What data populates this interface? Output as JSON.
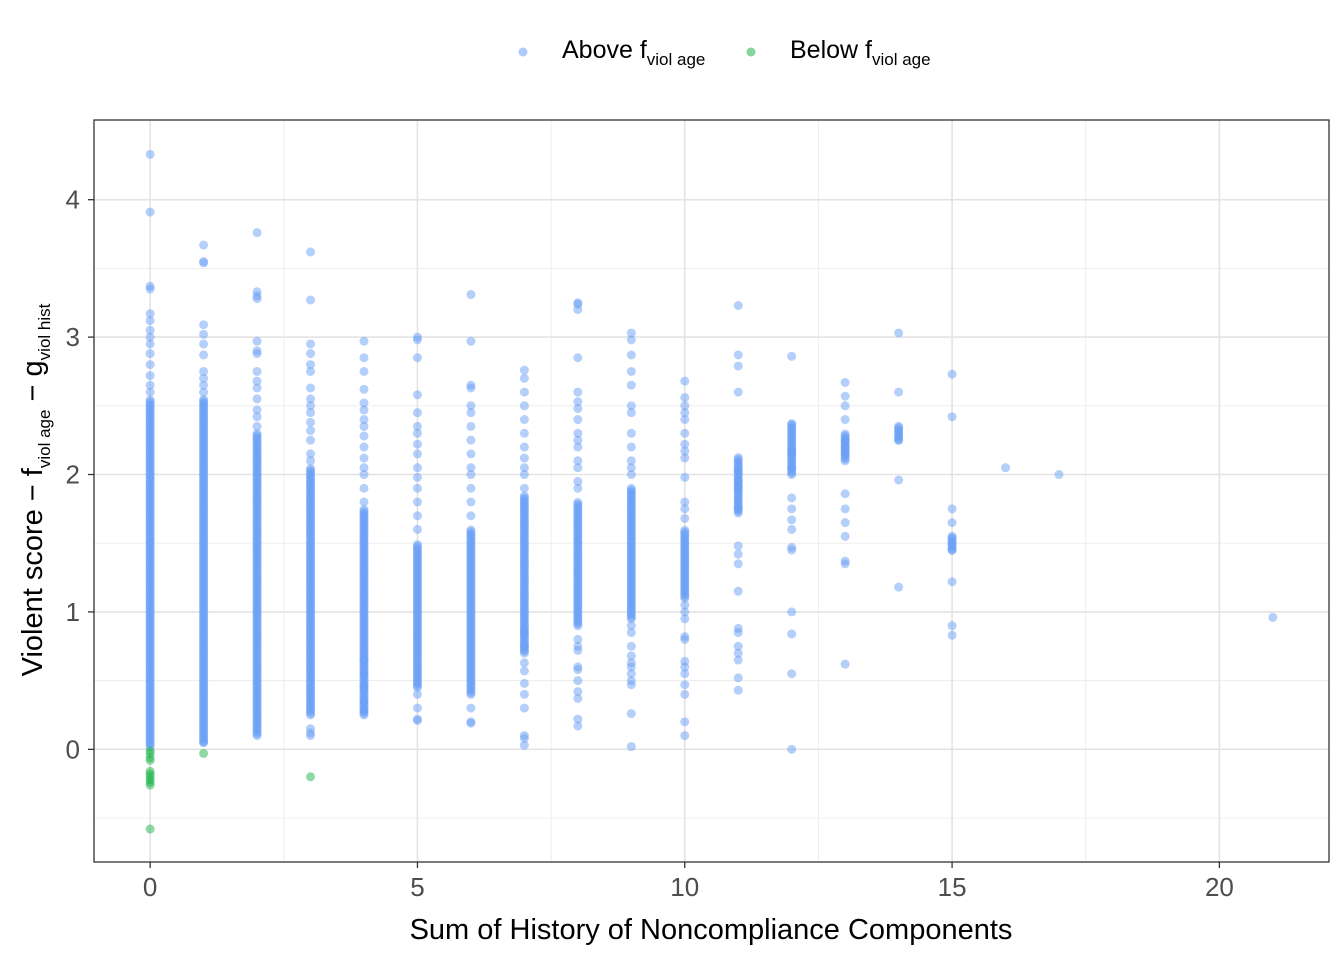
{
  "chart_data": {
    "type": "scatter",
    "xlabel": "Sum of History of Noncompliance Components",
    "ylabel": {
      "main": "Violent score",
      "minus": "−",
      "f": "f",
      "f_sub": "viol age",
      "g": "g",
      "g_sub": "viol hist"
    },
    "xlim": [
      -1.05,
      22.05
    ],
    "ylim": [
      -0.82,
      4.58
    ],
    "x_ticks": [
      0,
      5,
      10,
      15,
      20
    ],
    "y_ticks": [
      0,
      1,
      2,
      3,
      4
    ],
    "grid": true,
    "legend": {
      "position": "top",
      "entries": [
        {
          "label_main": "Above f",
          "label_sub": "viol age",
          "color": "#6A9FF5"
        },
        {
          "label_main": "Below f",
          "label_sub": "viol age",
          "color": "#1DB34A"
        }
      ]
    },
    "series": [
      {
        "name": "Above f viol age",
        "color": "#6A9FF5",
        "columns": [
          {
            "x": 0,
            "ymin": 0.02,
            "ymax": 2.55,
            "points": [
              2.6,
              2.65,
              2.72,
              2.8,
              2.88,
              2.95,
              3.0,
              3.05,
              3.12,
              3.17,
              3.35,
              3.37,
              3.91,
              4.33
            ]
          },
          {
            "x": 1,
            "ymin": 0.05,
            "ymax": 2.55,
            "points": [
              2.6,
              2.65,
              2.7,
              2.75,
              2.87,
              2.95,
              3.02,
              3.09,
              3.54,
              3.55,
              3.67,
              0.05
            ]
          },
          {
            "x": 2,
            "ymin": 0.1,
            "ymax": 2.3,
            "points": [
              2.35,
              2.42,
              2.47,
              2.55,
              2.63,
              2.68,
              2.75,
              2.88,
              2.9,
              2.97,
              3.28,
              3.3,
              3.33,
              3.76
            ]
          },
          {
            "x": 3,
            "ymin": 0.25,
            "ymax": 2.05,
            "points": [
              0.1,
              0.12,
              0.15,
              2.1,
              2.15,
              2.25,
              2.32,
              2.38,
              2.45,
              2.5,
              2.55,
              2.63,
              2.75,
              2.8,
              2.88,
              2.95,
              3.27,
              3.62
            ]
          },
          {
            "x": 4,
            "ymin": 0.25,
            "ymax": 1.75,
            "points": [
              0.28,
              0.35,
              0.45,
              0.55,
              0.65,
              1.8,
              1.9,
              2.0,
              2.05,
              2.12,
              2.2,
              2.28,
              2.35,
              2.4,
              2.47,
              2.52,
              2.62,
              2.75,
              2.85,
              2.97
            ]
          },
          {
            "x": 5,
            "ymin": 0.45,
            "ymax": 1.5,
            "points": [
              0.21,
              0.22,
              0.3,
              0.4,
              1.6,
              1.7,
              1.8,
              1.9,
              1.98,
              2.05,
              2.15,
              2.22,
              2.3,
              2.35,
              2.45,
              2.58,
              2.85,
              2.98,
              3.0
            ]
          },
          {
            "x": 6,
            "ymin": 0.4,
            "ymax": 1.6,
            "points": [
              0.19,
              0.2,
              0.3,
              1.7,
              1.8,
              1.9,
              2.0,
              2.05,
              2.15,
              2.25,
              2.35,
              2.45,
              2.5,
              2.63,
              2.65,
              2.97,
              3.31
            ]
          },
          {
            "x": 7,
            "ymin": 0.7,
            "ymax": 1.85,
            "points": [
              0.03,
              0.08,
              0.1,
              0.3,
              0.4,
              0.48,
              0.57,
              0.63,
              0.75,
              0.85,
              1.9,
              2.0,
              2.05,
              2.12,
              2.2,
              2.3,
              2.4,
              2.5,
              2.6,
              2.7,
              2.76
            ]
          },
          {
            "x": 8,
            "ymin": 0.9,
            "ymax": 1.8,
            "points": [
              0.17,
              0.22,
              0.37,
              0.42,
              0.5,
              0.58,
              0.6,
              0.72,
              0.75,
              0.8,
              1.9,
              1.95,
              2.05,
              2.1,
              2.2,
              2.25,
              2.3,
              2.4,
              2.48,
              2.53,
              2.6,
              2.85,
              3.2,
              3.24,
              3.25
            ]
          },
          {
            "x": 9,
            "ymin": 0.95,
            "ymax": 1.9,
            "points": [
              0.02,
              0.26,
              0.47,
              0.5,
              0.55,
              0.6,
              0.63,
              0.68,
              0.75,
              0.85,
              0.9,
              2.0,
              2.05,
              2.1,
              2.2,
              2.3,
              2.45,
              2.5,
              2.65,
              2.75,
              2.87,
              2.98,
              3.03
            ]
          },
          {
            "x": 10,
            "ymin": 1.1,
            "ymax": 1.6,
            "points": [
              0.1,
              0.2,
              0.4,
              0.47,
              0.55,
              0.6,
              0.64,
              0.8,
              0.82,
              0.95,
              1.0,
              1.05,
              1.68,
              1.75,
              1.8,
              1.98,
              2.12,
              2.17,
              2.22,
              2.3,
              2.4,
              2.45,
              2.5,
              2.56,
              2.68
            ]
          },
          {
            "x": 11,
            "ymin": 1.72,
            "ymax": 2.13,
            "points": [
              0.43,
              0.52,
              0.65,
              0.7,
              0.75,
              0.85,
              0.88,
              1.15,
              1.35,
              1.42,
              1.48,
              1.75,
              1.9,
              1.95,
              2.03,
              2.6,
              2.79,
              2.87,
              3.23
            ]
          },
          {
            "x": 12,
            "ymin": 2.0,
            "ymax": 2.37,
            "points": [
              0.0,
              0.55,
              0.84,
              1.0,
              1.45,
              1.47,
              1.6,
              1.67,
              1.75,
              1.83,
              2.05,
              2.15,
              2.18,
              2.37,
              2.86
            ]
          },
          {
            "x": 13,
            "ymin": 2.1,
            "ymax": 2.3,
            "points": [
              0.62,
              1.35,
              1.37,
              1.55,
              1.65,
              1.75,
              1.86,
              2.15,
              2.2,
              2.25,
              2.4,
              2.5,
              2.57,
              2.67
            ]
          },
          {
            "x": 14,
            "ymin": 2.25,
            "ymax": 2.35,
            "points": [
              1.18,
              1.96,
              2.25,
              2.35,
              2.6,
              3.03
            ]
          },
          {
            "x": 15,
            "ymin": 1.45,
            "ymax": 1.55,
            "points": [
              0.83,
              0.9,
              1.22,
              1.45,
              1.5,
              1.55,
              1.65,
              1.75,
              2.42,
              2.73
            ]
          },
          {
            "x": 16,
            "ymin": 2.05,
            "ymax": 2.05,
            "points": [
              2.05
            ]
          },
          {
            "x": 17,
            "ymin": 2.0,
            "ymax": 2.0,
            "points": [
              2.0
            ]
          },
          {
            "x": 21,
            "ymin": 0.96,
            "ymax": 0.96,
            "points": [
              0.96
            ]
          }
        ]
      },
      {
        "name": "Below f viol age",
        "color": "#1DB34A",
        "columns": [
          {
            "x": 0,
            "ymin": -0.02,
            "ymax": -0.02,
            "points": [
              -0.01,
              -0.03,
              -0.06,
              -0.08,
              -0.16,
              -0.18,
              -0.2,
              -0.22,
              -0.24,
              -0.26,
              -0.58
            ]
          },
          {
            "x": 1,
            "ymin": -0.03,
            "ymax": -0.03,
            "points": [
              -0.03
            ]
          },
          {
            "x": 3,
            "ymin": -0.2,
            "ymax": -0.2,
            "points": [
              -0.2
            ]
          }
        ]
      }
    ]
  }
}
